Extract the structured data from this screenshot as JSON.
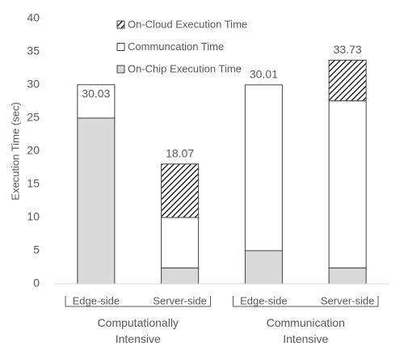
{
  "chart_data": {
    "type": "stacked_bar",
    "y_label": "Execution Time (sec)",
    "categories": [
      "Edge-side",
      "Server-side",
      "Edge-side",
      "Server-side"
    ],
    "groups": [
      "Computationally Intensive",
      "Communication Intensive"
    ],
    "series": [
      {
        "name": "On-Chip Execution Time",
        "color": "#d9d9d9",
        "values": [
          25,
          2.4,
          5,
          2.4
        ]
      },
      {
        "name": "Communcation Time",
        "color": "#ffffff",
        "values": [
          5.03,
          7.6,
          25.01,
          25.2
        ]
      },
      {
        "name": "On-Cloud Execution Time",
        "color": "#000000",
        "hatch": true,
        "values": [
          0,
          8.07,
          0,
          6.13
        ]
      }
    ],
    "total_labels": [
      "30.03",
      "18.07",
      "30.01",
      "33.73"
    ],
    "ylim": [
      0,
      40
    ],
    "yticks": [
      0,
      5,
      10,
      15,
      20,
      25,
      30,
      35,
      40
    ],
    "legend": "top-left"
  }
}
